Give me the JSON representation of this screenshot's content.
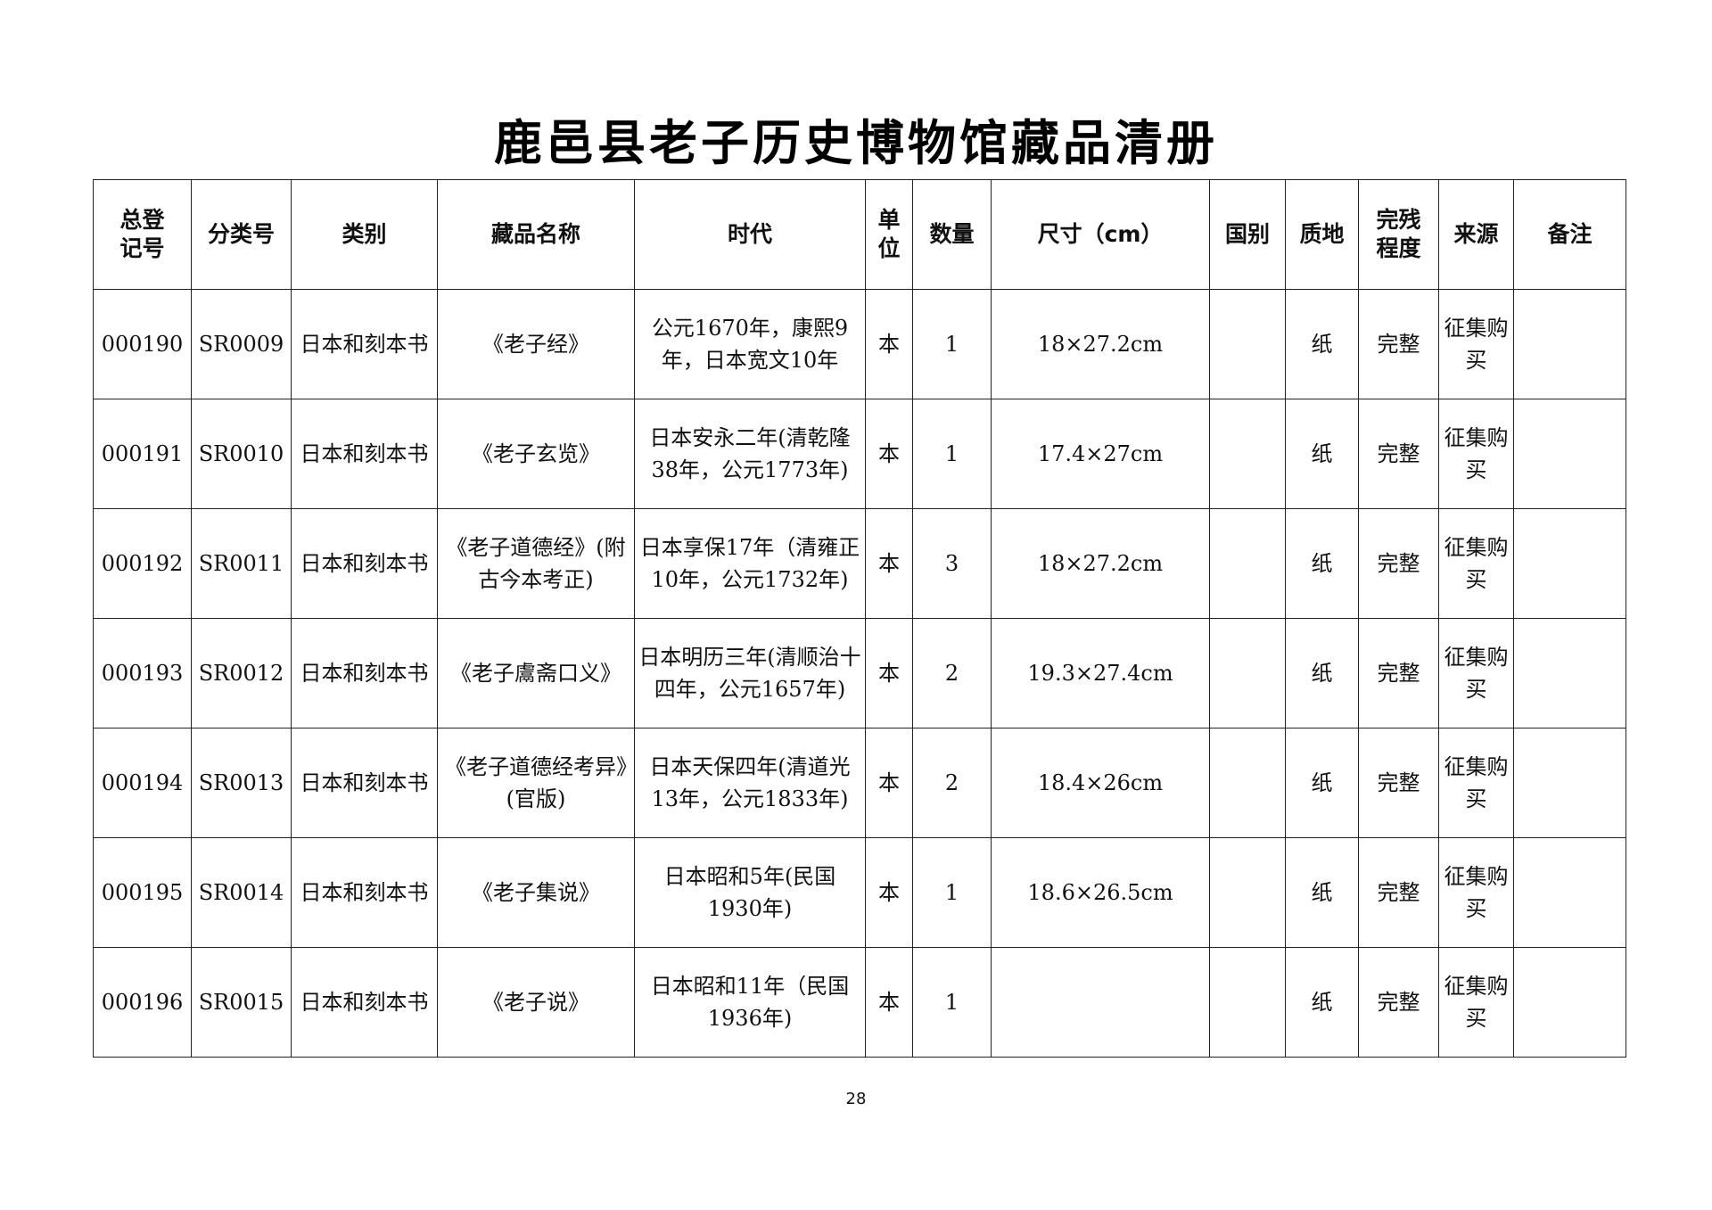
{
  "title": "鹿邑县老子历史博物馆藏品清册",
  "columns": [
    "总登记号",
    "分类号",
    "类别",
    "藏品名称",
    "时代",
    "单位",
    "数量",
    "尺寸（cm）",
    "国别",
    "质地",
    "完残程度",
    "来源",
    "备注"
  ],
  "rows": [
    {
      "reg_no": "000190",
      "class_no": "SR0009",
      "category": "日本和刻本书",
      "name": "《老子经》",
      "era": "公元1670年，康熙9年，日本宽文10年",
      "unit": "本",
      "qty": "1",
      "size": "18×27.2cm",
      "country": "",
      "material": "纸",
      "condition": "完整",
      "source": "征集购买",
      "note": ""
    },
    {
      "reg_no": "000191",
      "class_no": "SR0010",
      "category": "日本和刻本书",
      "name": "《老子玄览》",
      "era": "日本安永二年(清乾隆38年，公元1773年)",
      "unit": "本",
      "qty": "1",
      "size": "17.4×27cm",
      "country": "",
      "material": "纸",
      "condition": "完整",
      "source": "征集购买",
      "note": ""
    },
    {
      "reg_no": "000192",
      "class_no": "SR0011",
      "category": "日本和刻本书",
      "name": "《老子道德经》(附古今本考正)",
      "era": "日本享保17年（清雍正10年，公元1732年)",
      "unit": "本",
      "qty": "3",
      "size": "18×27.2cm",
      "country": "",
      "material": "纸",
      "condition": "完整",
      "source": "征集购买",
      "note": ""
    },
    {
      "reg_no": "000193",
      "class_no": "SR0012",
      "category": "日本和刻本书",
      "name": "《老子鬳斋口义》",
      "era": "日本明历三年(清顺治十四年，公元1657年)",
      "unit": "本",
      "qty": "2",
      "size": "19.3×27.4cm",
      "country": "",
      "material": "纸",
      "condition": "完整",
      "source": "征集购买",
      "note": ""
    },
    {
      "reg_no": "000194",
      "class_no": "SR0013",
      "category": "日本和刻本书",
      "name": "《老子道德经考异》(官版)",
      "era": "日本天保四年(清道光13年，公元1833年)",
      "unit": "本",
      "qty": "2",
      "size": "18.4×26cm",
      "country": "",
      "material": "纸",
      "condition": "完整",
      "source": "征集购买",
      "note": ""
    },
    {
      "reg_no": "000195",
      "class_no": "SR0014",
      "category": "日本和刻本书",
      "name": "《老子集说》",
      "era": "日本昭和5年(民国1930年)",
      "unit": "本",
      "qty": "1",
      "size": "18.6×26.5cm",
      "country": "",
      "material": "纸",
      "condition": "完整",
      "source": "征集购买",
      "note": ""
    },
    {
      "reg_no": "000196",
      "class_no": "SR0015",
      "category": "日本和刻本书",
      "name": "《老子说》",
      "era": "日本昭和11年（民国1936年)",
      "unit": "本",
      "qty": "1",
      "size": "",
      "country": "",
      "material": "纸",
      "condition": "完整",
      "source": "征集购买",
      "note": ""
    }
  ],
  "page_number": "28"
}
